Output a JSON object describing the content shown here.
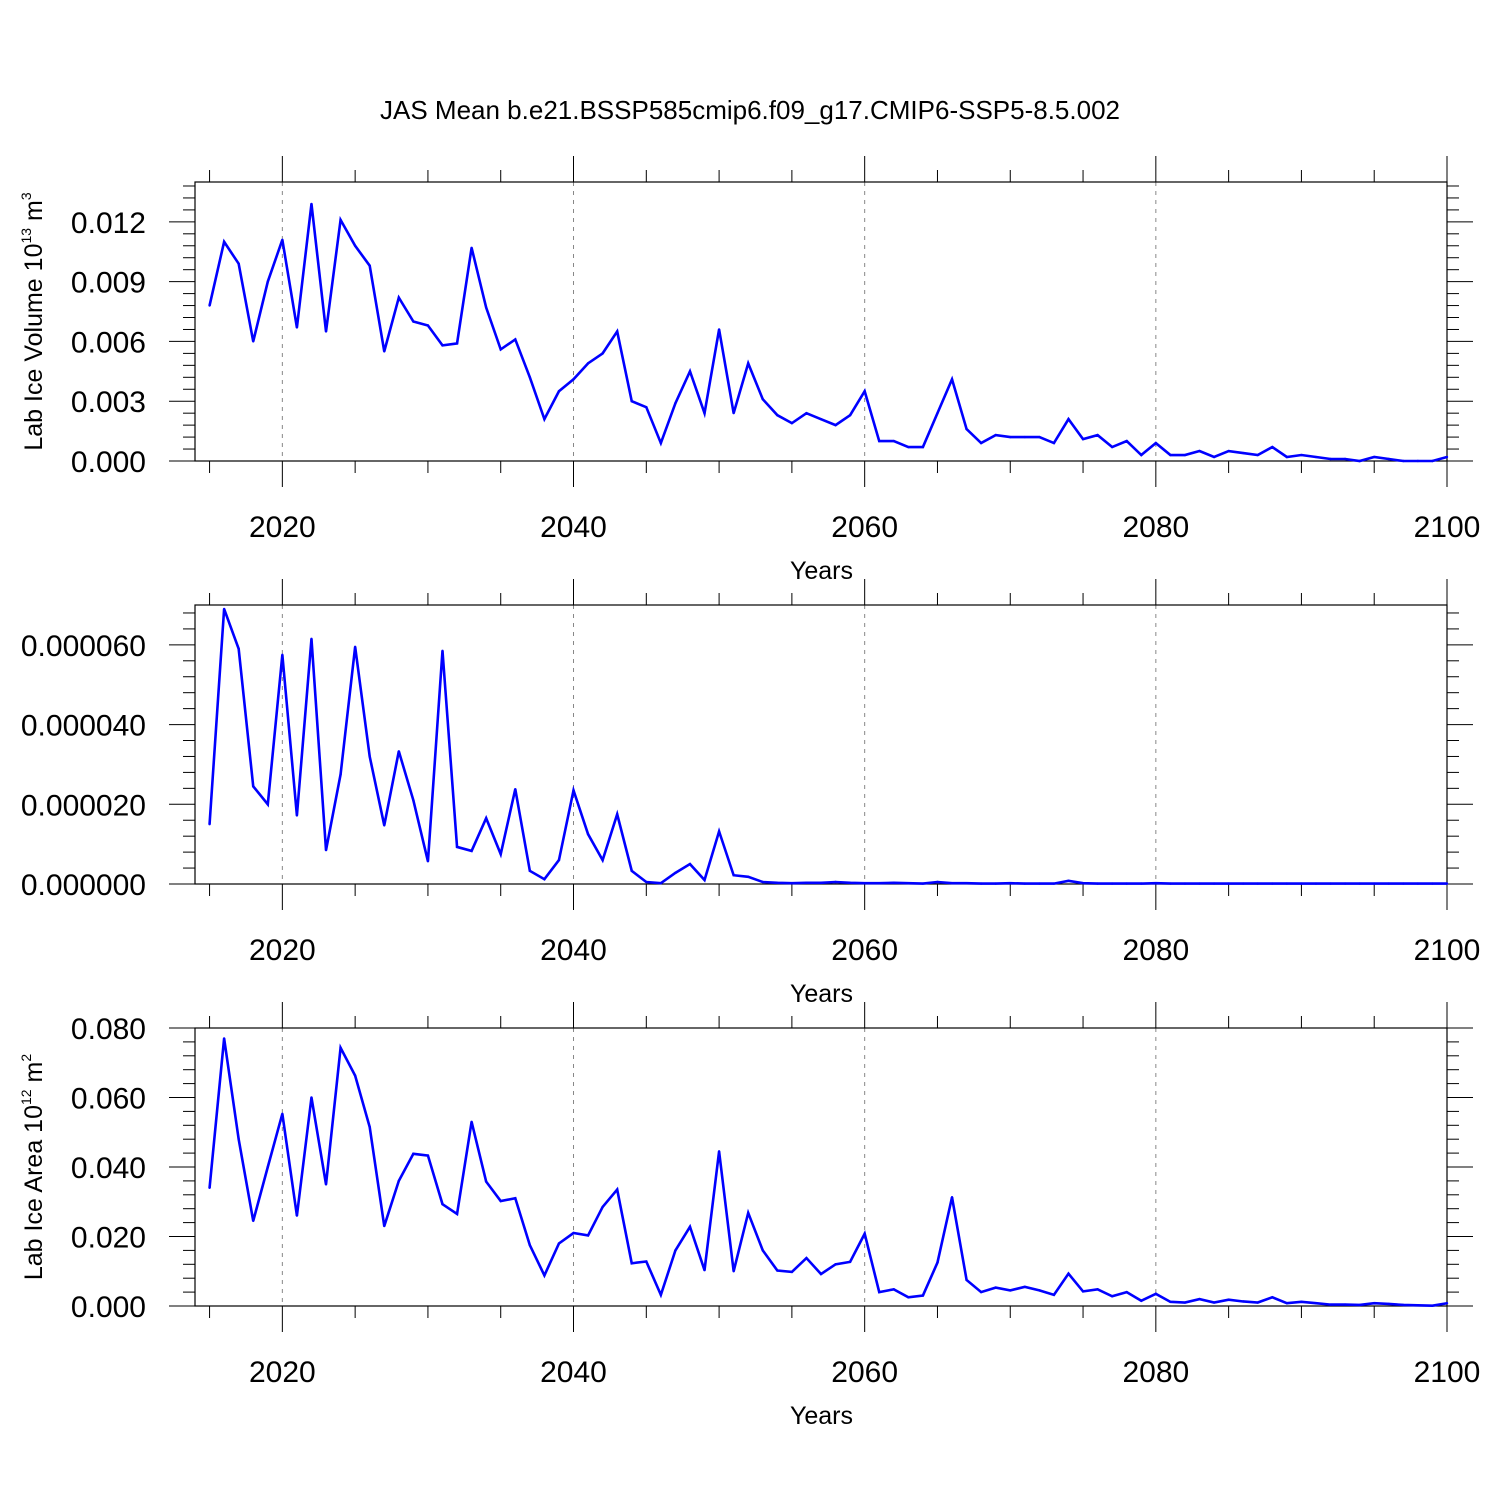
{
  "title": "JAS Mean b.e21.BSSP585cmip6.f09_g17.CMIP6-SSP5-8.5.002",
  "colors": {
    "line": "#0000ff",
    "axis": "#000000",
    "grid": "#888888"
  },
  "chart_data": [
    {
      "type": "line",
      "name": "volume",
      "xlabel": "Years",
      "ylabel": {
        "text": "Lab Ice Volume 10",
        "sup1": "13",
        "unit": " m",
        "sup2": "3"
      },
      "xlim": [
        2014,
        2100
      ],
      "ylim": [
        0,
        0.014
      ],
      "xticks": [
        "2020",
        "2040",
        "2060",
        "2080",
        "2100"
      ],
      "yticks": [
        "0.000",
        "0.003",
        "0.006",
        "0.009",
        "0.012"
      ],
      "ytick_values": [
        0,
        0.003,
        0.006,
        0.009,
        0.012
      ],
      "grid": "vertical dashed at major x ticks",
      "x_start": 2015,
      "values": [
        0.0078,
        0.011,
        0.0099,
        0.006,
        0.009,
        0.0111,
        0.0067,
        0.0129,
        0.0065,
        0.0121,
        0.0108,
        0.0098,
        0.0055,
        0.0082,
        0.007,
        0.0068,
        0.0058,
        0.0059,
        0.0107,
        0.0077,
        0.0056,
        0.0061,
        0.0042,
        0.0021,
        0.0035,
        0.0041,
        0.0049,
        0.0054,
        0.0065,
        0.003,
        0.0027,
        0.0009,
        0.0029,
        0.0045,
        0.0024,
        0.0066,
        0.0024,
        0.0049,
        0.0031,
        0.0023,
        0.0019,
        0.0024,
        0.0021,
        0.0018,
        0.0023,
        0.0035,
        0.001,
        0.001,
        0.0007,
        0.0007,
        0.0024,
        0.0041,
        0.0016,
        0.0009,
        0.0013,
        0.0012,
        0.0012,
        0.0012,
        0.0009,
        0.0021,
        0.0011,
        0.0013,
        0.0007,
        0.001,
        0.0003,
        0.0009,
        0.0003,
        0.0003,
        0.0005,
        0.0002,
        0.0005,
        0.0004,
        0.0003,
        0.0007,
        0.0002,
        0.0003,
        0.0002,
        0.0001,
        0.0001,
        0.0,
        0.0002,
        0.0001,
        0.0,
        0.0,
        0.0,
        0.0002
      ]
    },
    {
      "type": "line",
      "name": "thickness",
      "xlabel": "Years",
      "ylabel": null,
      "xlim": [
        2014,
        2100
      ],
      "ylim": [
        0,
        7e-05
      ],
      "xticks": [
        "2020",
        "2040",
        "2060",
        "2080",
        "2100"
      ],
      "yticks": [
        "0.000000",
        "0.000020",
        "0.000040",
        "0.000060"
      ],
      "ytick_values": [
        0,
        2e-05,
        4e-05,
        6e-05
      ],
      "grid": "vertical dashed at major x ticks",
      "x_start": 2015,
      "values": [
        1.5e-05,
        6.9e-05,
        5.9e-05,
        2.45e-05,
        2e-05,
        5.75e-05,
        1.72e-05,
        6.15e-05,
        8.5e-06,
        2.75e-05,
        5.95e-05,
        3.2e-05,
        1.47e-05,
        3.33e-05,
        2.1e-05,
        5.7e-06,
        5.85e-05,
        9.3e-06,
        8.3e-06,
        1.65e-05,
        7.5e-06,
        2.38e-05,
        3.3e-06,
        1.2e-06,
        6e-06,
        2.35e-05,
        1.25e-05,
        6e-06,
        1.75e-05,
        3.3e-06,
        5e-07,
        2e-07,
        2.8e-06,
        5e-06,
        1e-06,
        1.32e-05,
        2.2e-06,
        1.8e-06,
        5e-07,
        3e-07,
        2e-07,
        3e-07,
        3e-07,
        5e-07,
        3e-07,
        2e-07,
        2e-07,
        3e-07,
        2e-07,
        1e-07,
        5e-07,
        2e-07,
        2e-07,
        1e-07,
        1e-07,
        2e-07,
        1e-07,
        1e-07,
        1e-07,
        8e-07,
        2e-07,
        1e-07,
        1e-07,
        1e-07,
        1e-07,
        2e-07,
        1e-07,
        1e-07,
        1e-07,
        1e-07,
        1e-07,
        1e-07,
        1e-07,
        1e-07,
        1e-07,
        1e-07,
        1e-07,
        1e-07,
        1e-07,
        1e-07,
        1e-07,
        1e-07,
        1e-07,
        1e-07,
        1e-07,
        1e-07
      ]
    },
    {
      "type": "line",
      "name": "area",
      "xlabel": "Years",
      "ylabel": {
        "text": "Lab Ice Area 10",
        "sup1": "12",
        "unit": " m",
        "sup2": "2"
      },
      "xlim": [
        2014,
        2100
      ],
      "ylim": [
        0,
        0.08
      ],
      "xticks": [
        "2020",
        "2040",
        "2060",
        "2080",
        "2100"
      ],
      "yticks": [
        "0.000",
        "0.020",
        "0.040",
        "0.060",
        "0.080"
      ],
      "ytick_values": [
        0,
        0.02,
        0.04,
        0.06,
        0.08
      ],
      "grid": "vertical dashed at major x ticks",
      "x_start": 2015,
      "values": [
        0.034,
        0.077,
        0.048,
        0.0245,
        0.04,
        0.0553,
        0.026,
        0.06,
        0.035,
        0.0743,
        0.0663,
        0.0515,
        0.023,
        0.036,
        0.0438,
        0.0433,
        0.0293,
        0.0265,
        0.053,
        0.0358,
        0.0302,
        0.031,
        0.0175,
        0.0088,
        0.018,
        0.021,
        0.0203,
        0.0285,
        0.0335,
        0.0123,
        0.0128,
        0.0032,
        0.016,
        0.0228,
        0.0103,
        0.0445,
        0.01,
        0.0268,
        0.016,
        0.0102,
        0.0098,
        0.0138,
        0.0092,
        0.012,
        0.0127,
        0.0208,
        0.004,
        0.0048,
        0.0025,
        0.003,
        0.0125,
        0.0313,
        0.0075,
        0.004,
        0.0053,
        0.0045,
        0.0055,
        0.0045,
        0.0032,
        0.0093,
        0.0042,
        0.0048,
        0.0028,
        0.004,
        0.0015,
        0.0035,
        0.0012,
        0.001,
        0.002,
        0.001,
        0.0018,
        0.0013,
        0.001,
        0.0025,
        0.0008,
        0.0012,
        0.0008,
        0.0004,
        0.0004,
        0.0003,
        0.0008,
        0.0006,
        0.0003,
        0.0002,
        0.0001,
        0.0008
      ]
    }
  ]
}
